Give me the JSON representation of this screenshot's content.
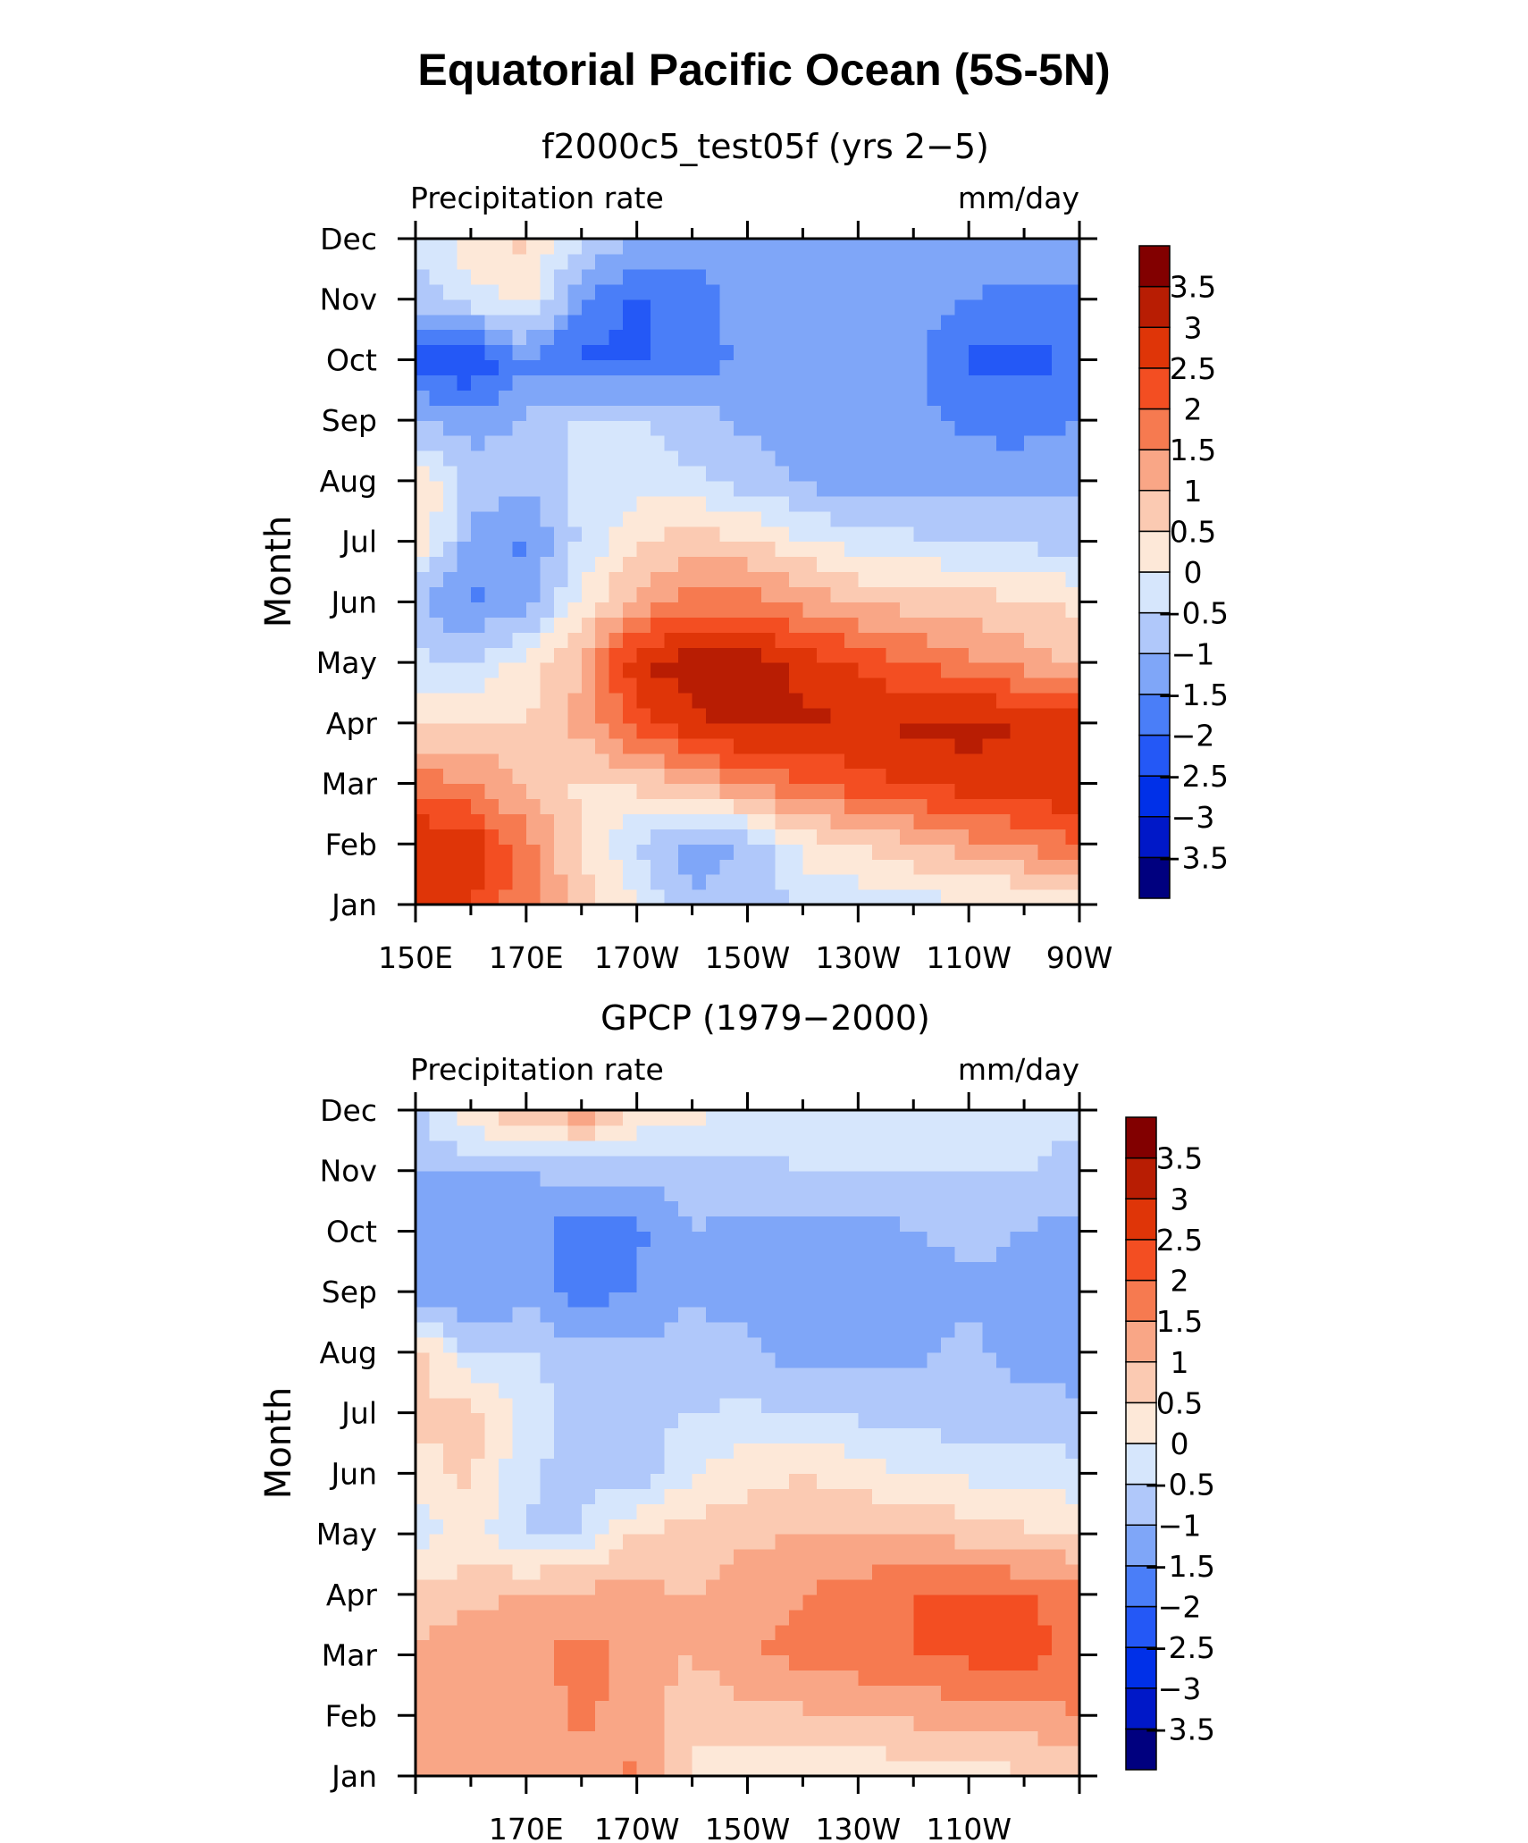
{
  "title": "Equatorial Pacific Ocean (5S-5N)",
  "units": "mm/day",
  "chart_data": [
    {
      "type": "heatmap",
      "title": "f2000c5_test05f (yrs 2−5)",
      "variable": "Precipitation rate",
      "units": "mm/day",
      "xlabel": "",
      "ylabel": "Month",
      "xlim": [
        150,
        270
      ],
      "xticks": [
        150,
        170,
        190,
        210,
        230,
        250,
        270
      ],
      "xtick_labels": [
        "150E",
        "170E",
        "170W",
        "150W",
        "130W",
        "110W",
        "90W"
      ],
      "y_categories": [
        "Jan",
        "Feb",
        "Mar",
        "Apr",
        "May",
        "Jun",
        "Jul",
        "Aug",
        "Sep",
        "Oct",
        "Nov",
        "Dec"
      ],
      "grid_x": [
        150,
        160,
        170,
        180,
        190,
        200,
        210,
        220,
        230,
        240,
        250,
        260,
        270
      ],
      "values": [
        [
          3.0,
          2.6,
          1.6,
          0.8,
          0.0,
          -0.9,
          -0.9,
          -0.4,
          -0.3,
          -0.2,
          -0.1,
          -0.1,
          0.2
        ],
        [
          3.0,
          2.8,
          1.7,
          0.4,
          -0.5,
          -1.3,
          -0.9,
          0.2,
          0.5,
          0.9,
          1.3,
          1.6,
          2.0
        ],
        [
          1.8,
          1.5,
          0.9,
          0.4,
          0.6,
          1.1,
          1.6,
          1.9,
          2.3,
          2.6,
          2.7,
          2.8,
          3.0
        ],
        [
          0.3,
          0.6,
          0.5,
          1.2,
          2.2,
          2.8,
          3.2,
          3.1,
          3.0,
          3.1,
          3.2,
          3.0,
          2.8
        ],
        [
          -0.4,
          -0.5,
          0.2,
          1.0,
          2.9,
          3.4,
          3.3,
          2.8,
          2.4,
          2.0,
          1.6,
          1.3,
          0.8
        ],
        [
          -1.0,
          -1.6,
          -1.2,
          0.2,
          1.2,
          1.7,
          1.8,
          1.3,
          1.0,
          0.8,
          0.7,
          0.6,
          0.4
        ],
        [
          0.6,
          -1.2,
          -1.6,
          -0.4,
          0.4,
          0.8,
          0.5,
          0.1,
          -0.3,
          -0.4,
          -0.5,
          -0.6,
          -0.8
        ],
        [
          0.5,
          -0.6,
          -0.9,
          -0.3,
          -0.2,
          -0.4,
          -0.7,
          -1.1,
          -1.2,
          -1.1,
          -1.3,
          -1.2,
          -1.1
        ],
        [
          -1.0,
          -1.3,
          -0.9,
          -0.4,
          -0.5,
          -0.8,
          -1.1,
          -1.3,
          -1.4,
          -1.3,
          -1.6,
          -1.7,
          -1.5
        ],
        [
          -2.2,
          -2.5,
          -1.6,
          -2.1,
          -2.1,
          -1.7,
          -1.4,
          -1.4,
          -1.3,
          -1.4,
          -2.1,
          -2.1,
          -2.0
        ],
        [
          -0.7,
          -0.3,
          0.3,
          -1.5,
          -2.1,
          -1.7,
          -1.3,
          -1.2,
          -1.3,
          -1.3,
          -1.5,
          -1.7,
          -1.6
        ],
        [
          -0.5,
          0.4,
          0.6,
          -0.4,
          -1.1,
          -1.3,
          -1.3,
          -1.2,
          -1.2,
          -1.2,
          -1.2,
          -1.2,
          -1.1
        ]
      ]
    },
    {
      "type": "heatmap",
      "title": "GPCP (1979−2000)",
      "variable": "Precipitation rate",
      "units": "mm/day",
      "xlabel": "",
      "ylabel": "Month",
      "xlim": [
        150,
        270
      ],
      "xticks": [
        170,
        190,
        210,
        230,
        250
      ],
      "xtick_labels": [
        "170E",
        "170W",
        "150W",
        "130W",
        "110W"
      ],
      "y_categories": [
        "Jan",
        "Feb",
        "Mar",
        "Apr",
        "May",
        "Jun",
        "Jul",
        "Aug",
        "Sep",
        "Oct",
        "Nov",
        "Dec"
      ],
      "grid_x": [
        150,
        160,
        170,
        180,
        190,
        200,
        210,
        220,
        230,
        240,
        250,
        260,
        270
      ],
      "values": [
        [
          1.2,
          1.1,
          1.1,
          1.3,
          1.6,
          0.4,
          0.2,
          0.2,
          0.1,
          0.2,
          0.3,
          0.4,
          0.6
        ],
        [
          1.3,
          1.4,
          1.2,
          1.6,
          1.3,
          0.6,
          0.8,
          0.9,
          1.0,
          1.1,
          1.2,
          1.3,
          1.5
        ],
        [
          1.1,
          1.5,
          1.3,
          1.7,
          1.3,
          1.0,
          1.5,
          1.6,
          1.8,
          2.0,
          2.1,
          2.2,
          1.8
        ],
        [
          0.6,
          0.8,
          1.1,
          1.2,
          1.1,
          1.0,
          1.3,
          1.5,
          1.7,
          2.0,
          2.0,
          2.0,
          1.9
        ],
        [
          -0.3,
          0.3,
          -0.6,
          -0.5,
          0.6,
          0.7,
          0.9,
          1.0,
          1.0,
          1.0,
          0.8,
          0.6,
          0.4
        ],
        [
          0.3,
          0.6,
          -0.4,
          -0.7,
          -0.8,
          0.0,
          0.3,
          0.5,
          0.3,
          -0.1,
          -0.1,
          -0.2,
          -0.3
        ],
        [
          0.6,
          0.7,
          -0.2,
          -0.8,
          -0.8,
          -0.5,
          -0.4,
          -0.5,
          -0.6,
          -0.7,
          -0.8,
          -0.8,
          -0.9
        ],
        [
          0.7,
          -0.5,
          -0.4,
          -0.9,
          -0.9,
          -0.7,
          -0.9,
          -1.2,
          -1.2,
          -1.1,
          -0.9,
          -1.2,
          -1.2
        ],
        [
          -1.3,
          -1.6,
          -1.2,
          -1.7,
          -1.5,
          -1.1,
          -1.2,
          -1.3,
          -1.3,
          -1.3,
          -1.1,
          -1.1,
          -1.1
        ],
        [
          -1.2,
          -1.0,
          -1.1,
          -1.9,
          -1.6,
          -1.0,
          -1.2,
          -1.2,
          -1.3,
          -1.0,
          -0.9,
          -1.0,
          -1.2
        ],
        [
          -1.0,
          -1.0,
          -1.0,
          -0.8,
          -0.8,
          -0.8,
          -0.6,
          -0.5,
          -0.5,
          -0.5,
          -0.5,
          -0.5,
          -0.6
        ],
        [
          -0.6,
          0.5,
          1.0,
          1.4,
          0.5,
          0.2,
          -0.2,
          -0.3,
          -0.4,
          -0.4,
          -0.4,
          -0.4,
          -0.4
        ]
      ]
    }
  ],
  "colorbar": {
    "levels": [
      -3.5,
      -3,
      -2.5,
      -2,
      -1.5,
      -1,
      -0.5,
      0,
      0.5,
      1,
      1.5,
      2,
      2.5,
      3,
      3.5
    ],
    "labels": [
      "−3.5",
      "−3",
      "−2.5",
      "−2",
      "−1.5",
      "−1",
      "−0.5",
      "0",
      "0.5",
      "1",
      "1.5",
      "2",
      "2.5",
      "3",
      "3.5"
    ],
    "colors": [
      "#00007f",
      "#0018c8",
      "#0030e8",
      "#2458f6",
      "#4a7ef8",
      "#7fa6f8",
      "#b0c8fa",
      "#d6e6fc",
      "#fde8d8",
      "#fbcab2",
      "#f9a686",
      "#f67a50",
      "#f34e22",
      "#df3508",
      "#b81d03",
      "#820000"
    ]
  }
}
